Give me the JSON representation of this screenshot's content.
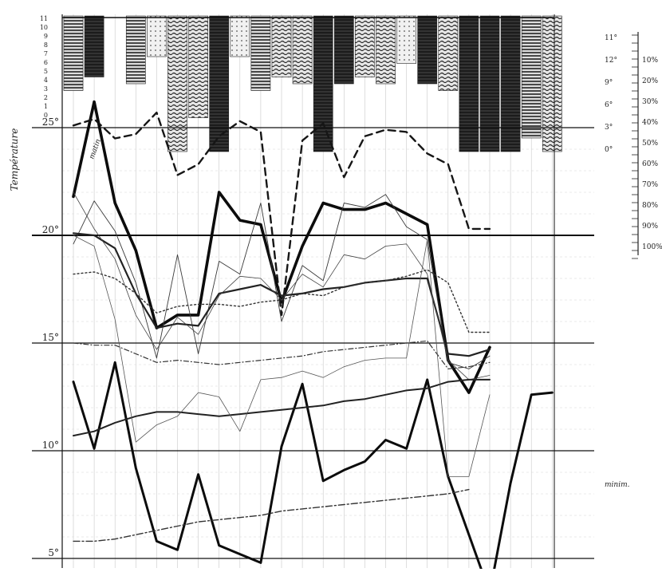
{
  "chart_data": {
    "type": "line",
    "title": "",
    "x": [
      1,
      2,
      3,
      4,
      5,
      6,
      7,
      8,
      9,
      10,
      11,
      12,
      13,
      14,
      15,
      16,
      17,
      18,
      19,
      20,
      21,
      22,
      23,
      24
    ],
    "y_unit_label": "°",
    "temperature_axis": {
      "ylim": [
        5,
        25
      ],
      "tick_labels": [
        {
          "value": 25,
          "label": "25°"
        },
        {
          "value": 20,
          "label": "20°"
        },
        {
          "value": 15,
          "label": "15°"
        },
        {
          "value": 10,
          "label": "10°"
        },
        {
          "value": 5,
          "label": "5°"
        }
      ]
    },
    "upper_scale": {
      "label": "Température",
      "ticks": [
        "11",
        "10",
        "9",
        "8",
        "7",
        "6",
        "5",
        "4",
        "3",
        "2",
        "1",
        "0",
        "",
        "",
        "",
        "",
        "",
        "",
        "",
        "",
        "",
        "",
        "",
        ""
      ]
    },
    "right_scale": {
      "degree_labels": [
        "11°",
        "12°",
        "9°",
        "6°",
        "3°",
        "0°"
      ],
      "percent_labels": [
        "10%",
        "20%",
        "30%",
        "40%",
        "50%",
        "60%",
        "70%",
        "80%",
        "90%",
        "100%"
      ]
    },
    "cloud_bars": [
      {
        "x": 1,
        "cover": 0.55,
        "pattern": "horizontal"
      },
      {
        "x": 2,
        "cover": 0.45,
        "pattern": "dense"
      },
      {
        "x": 4,
        "cover": 0.5,
        "pattern": "horizontal"
      },
      {
        "x": 5,
        "cover": 0.3,
        "pattern": "light"
      },
      {
        "x": 6,
        "cover": 1.0,
        "pattern": "wavy"
      },
      {
        "x": 7,
        "cover": 0.75,
        "pattern": "wavy"
      },
      {
        "x": 8,
        "cover": 1.0,
        "pattern": "dense"
      },
      {
        "x": 9,
        "cover": 0.3,
        "pattern": "light"
      },
      {
        "x": 10,
        "cover": 0.55,
        "pattern": "horizontal"
      },
      {
        "x": 11,
        "cover": 0.45,
        "pattern": "wavy"
      },
      {
        "x": 12,
        "cover": 0.5,
        "pattern": "wavy"
      },
      {
        "x": 13,
        "cover": 1.0,
        "pattern": "dense"
      },
      {
        "x": 14,
        "cover": 0.5,
        "pattern": "dense"
      },
      {
        "x": 15,
        "cover": 0.45,
        "pattern": "wavy"
      },
      {
        "x": 16,
        "cover": 0.5,
        "pattern": "wavy"
      },
      {
        "x": 17,
        "cover": 0.35,
        "pattern": "light"
      },
      {
        "x": 18,
        "cover": 0.5,
        "pattern": "dense"
      },
      {
        "x": 19,
        "cover": 0.55,
        "pattern": "wavy"
      },
      {
        "x": 20,
        "cover": 1.0,
        "pattern": "dense"
      },
      {
        "x": 21,
        "cover": 1.0,
        "pattern": "dense"
      },
      {
        "x": 22,
        "cover": 1.0,
        "pattern": "dense"
      },
      {
        "x": 23,
        "cover": 0.9,
        "pattern": "horizontal"
      },
      {
        "x": 24,
        "cover": 1.0,
        "pattern": "wavy"
      }
    ],
    "series": [
      {
        "style": "bold-upper",
        "values": [
          21.8,
          26.2,
          21.5,
          19.3,
          15.7,
          16.3,
          16.3,
          22.0,
          20.7,
          20.5,
          16.9,
          19.5,
          21.5,
          21.2,
          21.2,
          21.5,
          21.0,
          20.5,
          14.2,
          12.7,
          14.8,
          null,
          null,
          null
        ]
      },
      {
        "style": "dashed-upper",
        "values": [
          25.1,
          25.4,
          24.5,
          24.7,
          25.7,
          22.8,
          23.3,
          24.6,
          25.3,
          24.8,
          16.3,
          24.4,
          25.2,
          22.7,
          24.6,
          24.9,
          24.8,
          23.8,
          23.3,
          20.3,
          20.3,
          null,
          null,
          null
        ]
      },
      {
        "style": "thin-max",
        "values": [
          19.6,
          21.6,
          20.2,
          17.8,
          14.3,
          19.1,
          14.5,
          18.8,
          18.2,
          21.5,
          16.0,
          18.6,
          17.9,
          21.5,
          21.3,
          21.9,
          20.4,
          19.8,
          14.1,
          13.8,
          14.4,
          null,
          null,
          null
        ]
      },
      {
        "style": "medium-mean",
        "values": [
          20.1,
          20.0,
          19.4,
          17.3,
          15.7,
          15.9,
          15.8,
          17.3,
          17.5,
          17.7,
          17.2,
          17.3,
          17.5,
          17.6,
          17.8,
          17.9,
          18.0,
          18.0,
          14.5,
          14.4,
          14.7,
          null,
          null,
          null
        ]
      },
      {
        "style": "thin-b",
        "values": [
          22.0,
          20.3,
          18.9,
          16.3,
          14.7,
          16.2,
          15.4,
          17.2,
          18.1,
          18.0,
          17.0,
          18.2,
          17.6,
          19.1,
          18.9,
          19.5,
          19.6,
          18.2,
          14.2,
          13.3,
          13.5,
          null,
          null,
          null
        ]
      },
      {
        "style": "dotted",
        "values": [
          18.2,
          18.3,
          18.0,
          17.3,
          16.4,
          16.7,
          16.8,
          16.8,
          16.7,
          16.9,
          17.0,
          17.3,
          17.2,
          17.6,
          17.8,
          17.9,
          18.1,
          18.4,
          17.8,
          15.5,
          15.5,
          null,
          null,
          null
        ]
      },
      {
        "style": "dash-dot-mid",
        "values": [
          15.0,
          14.9,
          14.9,
          14.5,
          14.1,
          14.2,
          14.1,
          14.0,
          14.1,
          14.2,
          14.3,
          14.4,
          14.6,
          14.7,
          14.8,
          14.9,
          15.0,
          15.1,
          13.8,
          13.9,
          14.1,
          null,
          null,
          null
        ]
      },
      {
        "style": "bold-lower",
        "values": [
          13.2,
          10.1,
          14.1,
          9.2,
          5.8,
          5.4,
          8.9,
          5.6,
          5.2,
          4.8,
          10.2,
          13.1,
          8.6,
          9.1,
          9.5,
          10.5,
          10.1,
          13.3,
          8.8,
          6.1,
          3.4,
          8.5,
          12.6,
          12.7
        ]
      },
      {
        "style": "smooth-lower",
        "values": [
          10.7,
          10.9,
          11.3,
          11.6,
          11.8,
          11.8,
          11.7,
          11.6,
          11.7,
          11.8,
          11.9,
          12.0,
          12.1,
          12.3,
          12.4,
          12.6,
          12.8,
          12.9,
          13.2,
          13.3,
          13.3,
          null,
          null,
          null
        ]
      },
      {
        "style": "thin-lower",
        "values": [
          20.0,
          19.5,
          16.1,
          10.4,
          11.2,
          11.6,
          12.7,
          12.5,
          10.9,
          13.3,
          13.4,
          13.7,
          13.4,
          13.9,
          14.2,
          14.3,
          14.3,
          19.8,
          8.8,
          8.8,
          12.6,
          null,
          null,
          null
        ]
      },
      {
        "style": "dash-dot-low",
        "values": [
          5.8,
          5.8,
          5.9,
          6.1,
          6.3,
          6.5,
          6.7,
          6.8,
          6.9,
          7.0,
          7.2,
          7.3,
          7.4,
          7.5,
          7.6,
          7.7,
          7.8,
          7.9,
          8.0,
          8.2,
          null,
          null,
          null,
          null
        ]
      }
    ],
    "annotations": [
      "matin",
      "minim."
    ]
  }
}
